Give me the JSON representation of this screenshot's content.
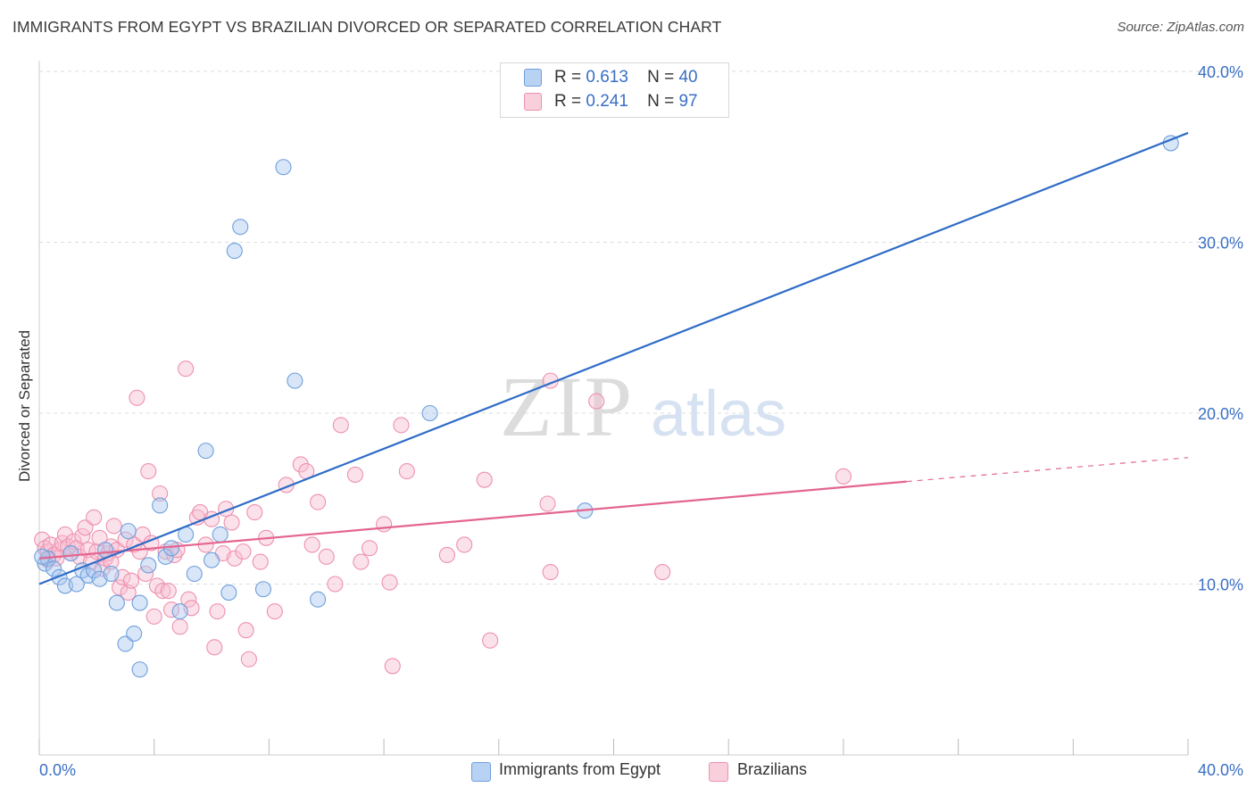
{
  "title": "IMMIGRANTS FROM EGYPT VS BRAZILIAN DIVORCED OR SEPARATED CORRELATION CHART",
  "source": "Source: ZipAtlas.com",
  "watermark": {
    "zip": "ZIP",
    "atlas": "atlas"
  },
  "colors": {
    "blue_fill": "#a9c8f0",
    "blue_stroke": "#6f9fdc",
    "blue_line": "#2f6cc7",
    "pink_fill": "#f6bfd0",
    "pink_stroke": "#ee90b0",
    "pink_line": "#e4658f",
    "axis_text": "#3a6fc4",
    "grid": "#dddddd"
  },
  "legend": {
    "r_label": "R =",
    "n_label": "N =",
    "items": [
      {
        "r": "0.613",
        "n": "40"
      },
      {
        "r": "0.241",
        "n": "97"
      }
    ]
  },
  "bottom_legend": [
    "Immigrants from Egypt",
    "Brazilians"
  ],
  "chart_data": {
    "type": "scatter",
    "title": "IMMIGRANTS FROM EGYPT VS BRAZILIAN DIVORCED OR SEPARATED CORRELATION CHART",
    "xlabel": "",
    "ylabel": "Divorced or Separated",
    "xlim": [
      0,
      40
    ],
    "ylim": [
      0,
      40
    ],
    "x_tick_labels": [
      "0.0%",
      "40.0%"
    ],
    "y_tick_labels": [
      "10.0%",
      "20.0%",
      "30.0%",
      "40.0%"
    ],
    "y_ticks": [
      10,
      20,
      30,
      40
    ],
    "grid": true,
    "legend_position": "top-center",
    "series": [
      {
        "name": "Immigrants from Egypt",
        "r": 0.613,
        "n": 40,
        "trend": {
          "x": [
            0,
            40
          ],
          "y": [
            10.0,
            36.4
          ]
        },
        "points": [
          [
            0.2,
            11.2
          ],
          [
            0.3,
            11.5
          ],
          [
            0.5,
            10.9
          ],
          [
            0.7,
            10.4
          ],
          [
            0.9,
            9.9
          ],
          [
            1.1,
            11.8
          ],
          [
            1.3,
            10.0
          ],
          [
            1.5,
            10.8
          ],
          [
            1.7,
            10.5
          ],
          [
            1.9,
            10.8
          ],
          [
            2.1,
            10.3
          ],
          [
            2.3,
            12.0
          ],
          [
            2.5,
            10.6
          ],
          [
            2.7,
            8.9
          ],
          [
            3.0,
            6.5
          ],
          [
            3.1,
            13.1
          ],
          [
            3.3,
            7.1
          ],
          [
            3.5,
            5.0
          ],
          [
            3.8,
            11.1
          ],
          [
            4.2,
            14.6
          ],
          [
            4.4,
            11.6
          ],
          [
            4.6,
            12.1
          ],
          [
            4.9,
            8.4
          ],
          [
            5.1,
            12.9
          ],
          [
            5.4,
            10.6
          ],
          [
            5.8,
            17.8
          ],
          [
            6.0,
            11.4
          ],
          [
            6.3,
            12.9
          ],
          [
            6.6,
            9.5
          ],
          [
            7.0,
            30.9
          ],
          [
            6.8,
            29.5
          ],
          [
            8.5,
            34.4
          ],
          [
            8.9,
            21.9
          ],
          [
            9.7,
            9.1
          ],
          [
            7.8,
            9.7
          ],
          [
            13.6,
            20.0
          ],
          [
            19.0,
            14.3
          ],
          [
            39.4,
            35.8
          ],
          [
            0.1,
            11.6
          ],
          [
            3.5,
            8.9
          ]
        ]
      },
      {
        "name": "Brazilians",
        "r": 0.241,
        "n": 97,
        "trend": {
          "x": [
            0,
            30.2
          ],
          "y": [
            11.5,
            16.0
          ]
        },
        "trend_dashed": {
          "x": [
            30.2,
            40
          ],
          "y": [
            16.0,
            17.4
          ]
        },
        "points": [
          [
            0.1,
            12.6
          ],
          [
            0.2,
            12.1
          ],
          [
            0.3,
            11.9
          ],
          [
            0.3,
            11.4
          ],
          [
            0.4,
            12.3
          ],
          [
            0.5,
            11.7
          ],
          [
            0.6,
            11.5
          ],
          [
            0.7,
            12.0
          ],
          [
            0.8,
            12.4
          ],
          [
            0.9,
            12.9
          ],
          [
            1.0,
            12.2
          ],
          [
            1.1,
            11.8
          ],
          [
            1.2,
            12.5
          ],
          [
            1.3,
            12.1
          ],
          [
            1.4,
            11.6
          ],
          [
            1.5,
            12.8
          ],
          [
            1.6,
            13.3
          ],
          [
            1.7,
            12.0
          ],
          [
            1.8,
            11.3
          ],
          [
            1.9,
            13.9
          ],
          [
            2.0,
            11.9
          ],
          [
            2.1,
            12.7
          ],
          [
            2.2,
            10.9
          ],
          [
            2.3,
            11.5
          ],
          [
            2.4,
            11.8
          ],
          [
            2.5,
            12.2
          ],
          [
            2.6,
            13.4
          ],
          [
            2.7,
            12.0
          ],
          [
            2.8,
            9.8
          ],
          [
            2.9,
            10.4
          ],
          [
            3.0,
            12.6
          ],
          [
            3.1,
            9.5
          ],
          [
            3.2,
            10.2
          ],
          [
            3.3,
            12.3
          ],
          [
            3.4,
            20.9
          ],
          [
            3.5,
            11.9
          ],
          [
            3.6,
            12.9
          ],
          [
            3.7,
            10.6
          ],
          [
            3.8,
            16.6
          ],
          [
            3.9,
            12.4
          ],
          [
            4.0,
            8.1
          ],
          [
            4.1,
            9.9
          ],
          [
            4.2,
            15.3
          ],
          [
            4.3,
            9.6
          ],
          [
            4.4,
            11.9
          ],
          [
            4.5,
            9.6
          ],
          [
            4.6,
            8.5
          ],
          [
            4.7,
            11.7
          ],
          [
            4.8,
            12.0
          ],
          [
            4.9,
            7.5
          ],
          [
            5.1,
            22.6
          ],
          [
            5.2,
            9.1
          ],
          [
            5.3,
            8.6
          ],
          [
            5.5,
            13.9
          ],
          [
            5.6,
            14.2
          ],
          [
            5.8,
            12.3
          ],
          [
            6.0,
            13.8
          ],
          [
            6.1,
            6.3
          ],
          [
            6.2,
            8.4
          ],
          [
            6.4,
            11.8
          ],
          [
            6.5,
            14.4
          ],
          [
            6.7,
            13.6
          ],
          [
            6.8,
            11.5
          ],
          [
            7.1,
            11.9
          ],
          [
            7.3,
            5.6
          ],
          [
            7.5,
            14.2
          ],
          [
            7.7,
            11.3
          ],
          [
            7.9,
            12.7
          ],
          [
            8.2,
            8.4
          ],
          [
            8.6,
            15.8
          ],
          [
            9.1,
            17.0
          ],
          [
            9.3,
            16.6
          ],
          [
            9.5,
            12.3
          ],
          [
            9.7,
            14.8
          ],
          [
            10.0,
            11.6
          ],
          [
            10.3,
            10.0
          ],
          [
            10.5,
            19.3
          ],
          [
            11.0,
            16.4
          ],
          [
            11.2,
            11.3
          ],
          [
            11.5,
            12.1
          ],
          [
            12.0,
            13.5
          ],
          [
            12.2,
            10.1
          ],
          [
            12.3,
            5.2
          ],
          [
            12.6,
            19.3
          ],
          [
            12.8,
            16.6
          ],
          [
            14.2,
            11.7
          ],
          [
            14.8,
            12.3
          ],
          [
            15.5,
            16.1
          ],
          [
            15.7,
            6.7
          ],
          [
            17.7,
            14.7
          ],
          [
            17.8,
            10.7
          ],
          [
            17.8,
            21.9
          ],
          [
            19.4,
            20.7
          ],
          [
            21.7,
            10.7
          ],
          [
            28.0,
            16.3
          ],
          [
            7.2,
            7.3
          ],
          [
            2.5,
            11.3
          ]
        ]
      }
    ]
  }
}
